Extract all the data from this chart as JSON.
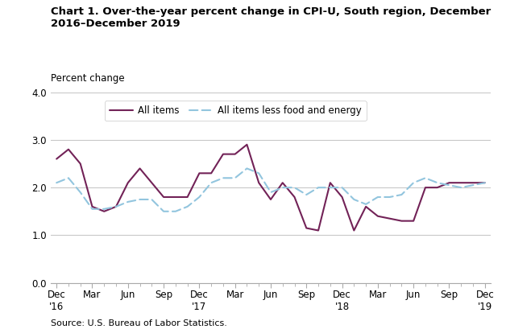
{
  "title_line1": "Chart 1. Over-the-year percent change in CPI-U, South region, December",
  "title_line2": "2016–December 2019",
  "ylabel": "Percent change",
  "source": "Source: U.S. Bureau of Labor Statistics.",
  "ylim": [
    0.0,
    4.0
  ],
  "yticks": [
    0.0,
    1.0,
    2.0,
    3.0,
    4.0
  ],
  "all_items": [
    2.6,
    2.8,
    2.5,
    1.6,
    1.5,
    1.6,
    2.1,
    2.4,
    2.1,
    1.8,
    1.8,
    1.8,
    2.3,
    2.3,
    2.7,
    2.7,
    2.9,
    2.1,
    1.75,
    2.1,
    1.8,
    1.15,
    1.1,
    2.1,
    1.8,
    1.1,
    1.6,
    1.4,
    1.35,
    1.3,
    1.3,
    2.0,
    2.0,
    2.1,
    2.1,
    2.1,
    2.1
  ],
  "all_items_less": [
    2.1,
    2.2,
    1.9,
    1.55,
    1.55,
    1.6,
    1.7,
    1.75,
    1.75,
    1.5,
    1.5,
    1.6,
    1.8,
    2.1,
    2.2,
    2.2,
    2.4,
    2.3,
    1.9,
    2.0,
    2.0,
    1.85,
    2.0,
    2.0,
    2.0,
    1.75,
    1.65,
    1.8,
    1.8,
    1.85,
    2.1,
    2.2,
    2.1,
    2.05,
    2.0,
    2.05,
    2.1
  ],
  "all_items_color": "#722257",
  "all_items_less_color": "#92C5DE",
  "tick_label_positions": [
    0,
    3,
    6,
    9,
    12,
    15,
    18,
    21,
    24,
    27,
    30,
    33,
    36
  ],
  "tick_labels_top": [
    "Dec",
    "Mar",
    "Jun",
    "Sep",
    "Dec",
    "Mar",
    "Jun",
    "Sep",
    "Dec",
    "Mar",
    "Jun",
    "Sep",
    "Dec"
  ],
  "tick_labels_bot": [
    "'16",
    "",
    "",
    "",
    "'17",
    "",
    "",
    "",
    "'18",
    "",
    "",
    "",
    "'19"
  ],
  "grid_color": "#c8c8c8",
  "background_color": "#ffffff",
  "border_color": "#aaaaaa"
}
